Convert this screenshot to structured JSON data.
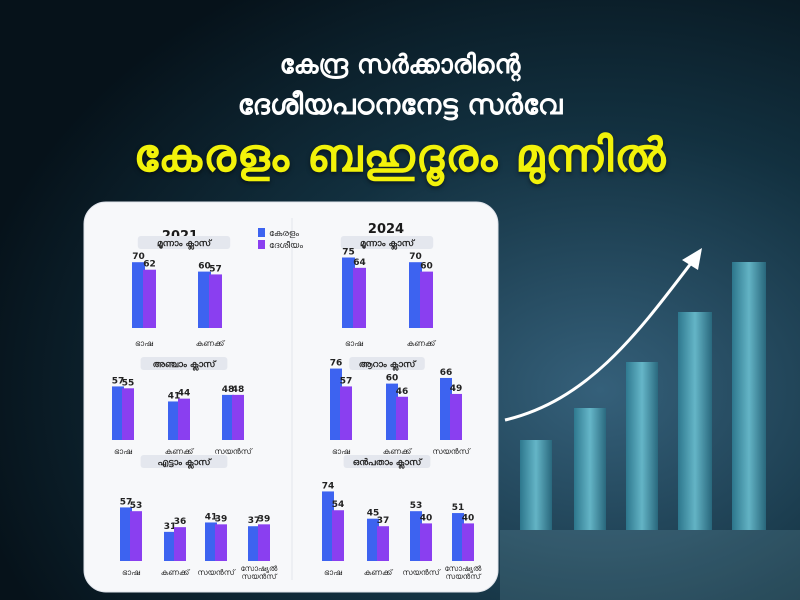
{
  "headline": {
    "line1": "കേന്ദ്ര സർക്കാരിന്റെ",
    "line2": "ദേശീയപഠനനേട്ട സർവേ",
    "line3": "കേരളം ബഹുദൂരം മുന്നിൽ"
  },
  "colors": {
    "kerala": "#3d63f0",
    "national": "#8a3ff0",
    "headline_highlight": "#f2f20a",
    "background": "#0b1d2a"
  },
  "legend": {
    "kerala": "കേരളം",
    "national": "ദേശീയം"
  },
  "chart_data": [
    {
      "type": "bar",
      "year": "2021",
      "groups": [
        {
          "title": "മൂന്നാം ക്ലാസ്",
          "categories": [
            "ഭാഷ",
            "കണക്ക്"
          ],
          "series": [
            {
              "name": "കേരളം",
              "values": [
                70,
                60
              ]
            },
            {
              "name": "ദേശീയം",
              "values": [
                62,
                57
              ]
            }
          ]
        },
        {
          "title": "അഞ്ചാം ക്ലാസ്",
          "categories": [
            "ഭാഷ",
            "കണക്ക്",
            "സയൻസ്"
          ],
          "series": [
            {
              "name": "കേരളം",
              "values": [
                57,
                41,
                48
              ]
            },
            {
              "name": "ദേശീയം",
              "values": [
                55,
                44,
                48
              ]
            }
          ]
        },
        {
          "title": "എട്ടാം ക്ലാസ്",
          "categories": [
            "ഭാഷ",
            "കണക്ക്",
            "സയൻസ്",
            "സോഷ്യൽ സയൻസ്"
          ],
          "series": [
            {
              "name": "കേരളം",
              "values": [
                57,
                31,
                41,
                37
              ]
            },
            {
              "name": "ദേശീയം",
              "values": [
                53,
                36,
                39,
                39
              ]
            }
          ]
        }
      ]
    },
    {
      "type": "bar",
      "year": "2024",
      "groups": [
        {
          "title": "മൂന്നാം ക്ലാസ്",
          "categories": [
            "ഭാഷ",
            "കണക്ക്"
          ],
          "series": [
            {
              "name": "കേരളം",
              "values": [
                75,
                70
              ]
            },
            {
              "name": "ദേശീയം",
              "values": [
                64,
                60
              ]
            }
          ]
        },
        {
          "title": "ആറാം ക്ലാസ്",
          "categories": [
            "ഭാഷ",
            "കണക്ക്",
            "സയൻസ്"
          ],
          "series": [
            {
              "name": "കേരളം",
              "values": [
                76,
                60,
                66
              ]
            },
            {
              "name": "ദേശീയം",
              "values": [
                57,
                46,
                49
              ]
            }
          ]
        },
        {
          "title": "ഒൻപതാം ക്ലാസ്",
          "categories": [
            "ഭാഷ",
            "കണക്ക്",
            "സയൻസ്",
            "സോഷ്യൽ സയൻസ്"
          ],
          "series": [
            {
              "name": "കേരളം",
              "values": [
                74,
                45,
                53,
                51
              ]
            },
            {
              "name": "ദേശീയം",
              "values": [
                54,
                37,
                40,
                40
              ]
            }
          ]
        }
      ]
    }
  ]
}
